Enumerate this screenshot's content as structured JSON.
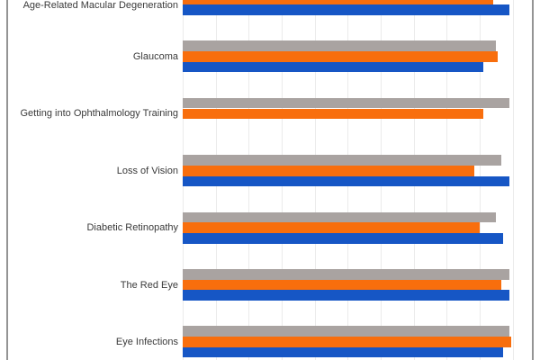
{
  "window": {
    "background": "#FFFFFF",
    "frame_border_color": "#949494"
  },
  "chart_data": {
    "type": "bar",
    "orientation": "horizontal",
    "title": "",
    "label_color": "#3A3A3A",
    "categories": [
      "Age-Related Macular Degeneration",
      "Glaucoma",
      "Getting into Ophthalmology Training",
      "Loss of Vision",
      "Diabetic Retinopathy",
      "The Red Eye",
      "Eye Infections"
    ],
    "series": [
      {
        "name": "gray",
        "color": "#A9A3A1",
        "values": [
          null,
          95,
          99,
          96.5,
          95,
          99,
          99
        ]
      },
      {
        "name": "orange",
        "color": "#F86E0D",
        "values": [
          94,
          95.5,
          91,
          88.5,
          90,
          96.5,
          99.5
        ]
      },
      {
        "name": "blue",
        "color": "#1656C5",
        "values": [
          99,
          91,
          null,
          99,
          97,
          99,
          97
        ]
      }
    ],
    "axis": {
      "xmin": 0,
      "xmax_visible": 106,
      "grid_step": 10,
      "grid_line_count": 11,
      "grid_color": "#EBEBEB",
      "grid": "on",
      "tick_labels_visible": false
    },
    "legend": {
      "visible": false
    },
    "crop_note": "chart clipped at top, bottom and right edges of viewport"
  }
}
